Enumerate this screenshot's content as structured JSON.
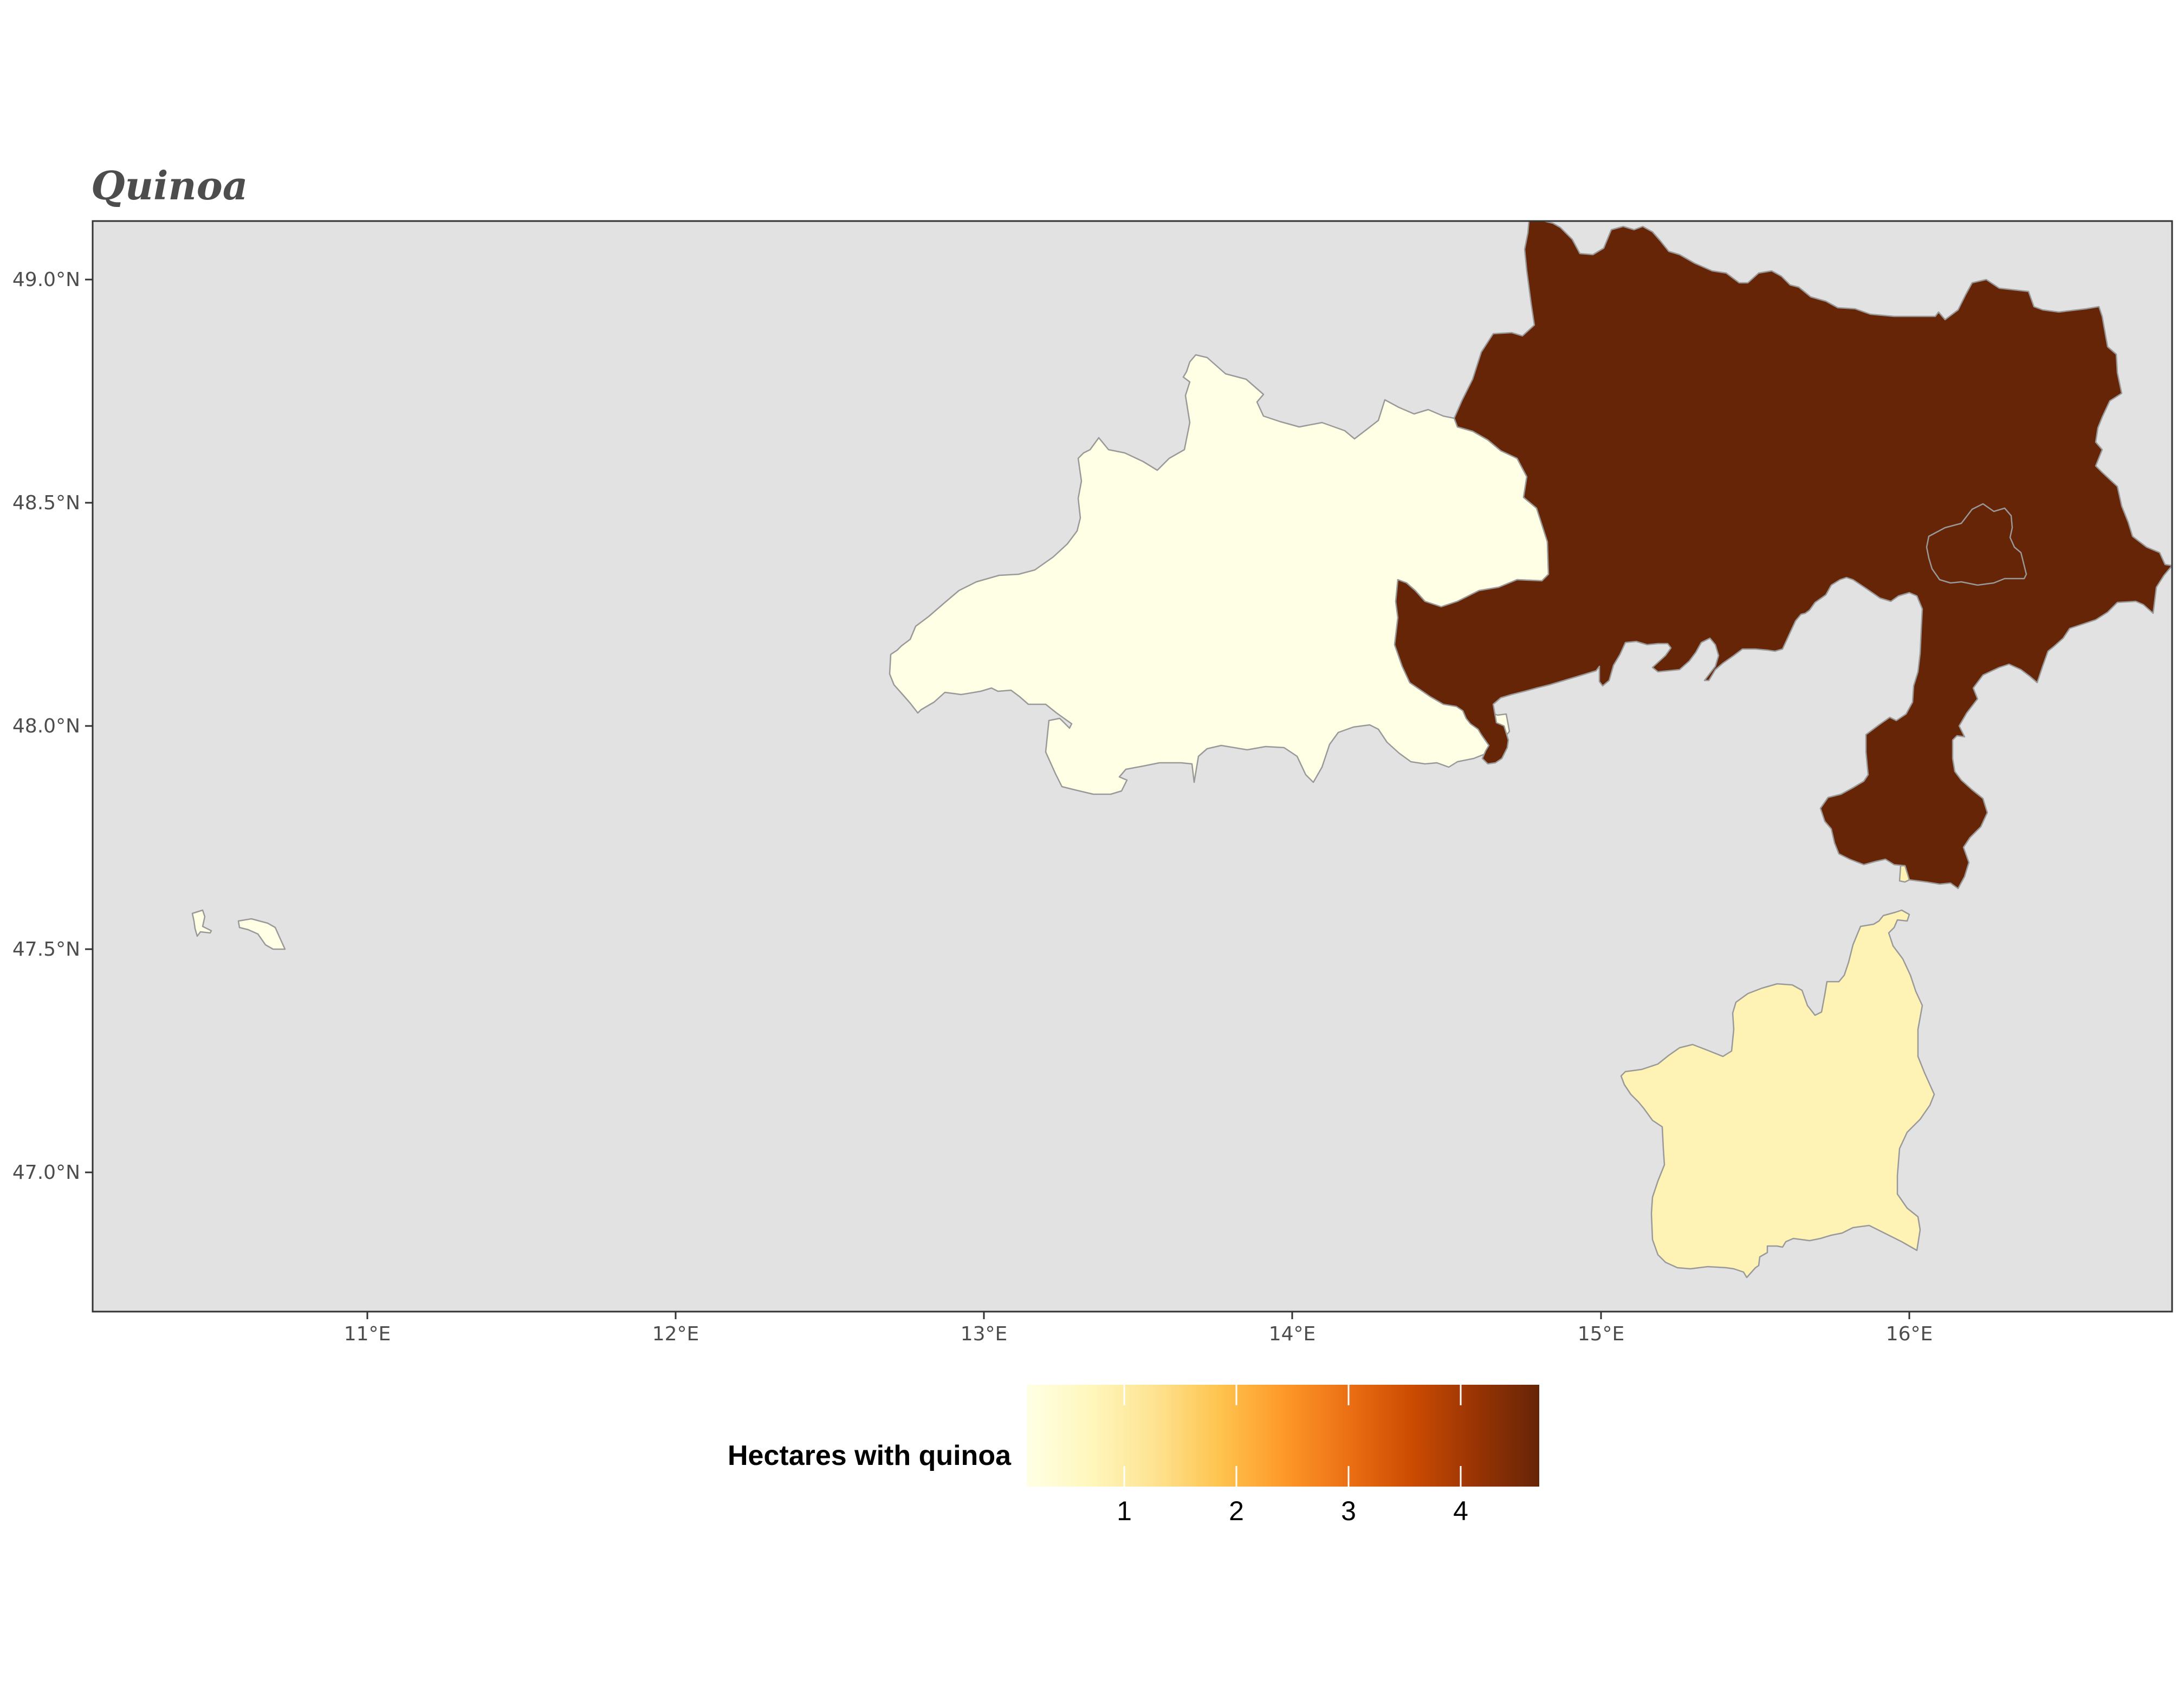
{
  "title": "Quinoa",
  "map": {
    "background": "#e2e2e2",
    "lon_ticks": [
      "11°E",
      "12°E",
      "13°E",
      "14°E",
      "15°E",
      "16°E"
    ],
    "lat_ticks": [
      "49.0°N",
      "48.5°N",
      "48.0°N",
      "47.5°N",
      "47.0°N"
    ],
    "regions": [
      {
        "name": "region-upper-austria",
        "value": 0.2,
        "fill": "#ffffe6"
      },
      {
        "name": "region-lower-austria",
        "value": 4.7,
        "fill": "#662506"
      },
      {
        "name": "region-styria",
        "value": 0.8,
        "fill": "#fff2b5"
      },
      {
        "name": "region-tyrol-fragment",
        "value": 0.2,
        "fill": "#ffffe6"
      }
    ]
  },
  "legend": {
    "title": "Hectares with quinoa",
    "ticks": [
      "1",
      "2",
      "3",
      "4"
    ],
    "colors": [
      "#ffffe5",
      "#fff7bc",
      "#fee391",
      "#fec44f",
      "#fe9929",
      "#ec7014",
      "#cc4c02",
      "#993404",
      "#662506"
    ]
  }
}
